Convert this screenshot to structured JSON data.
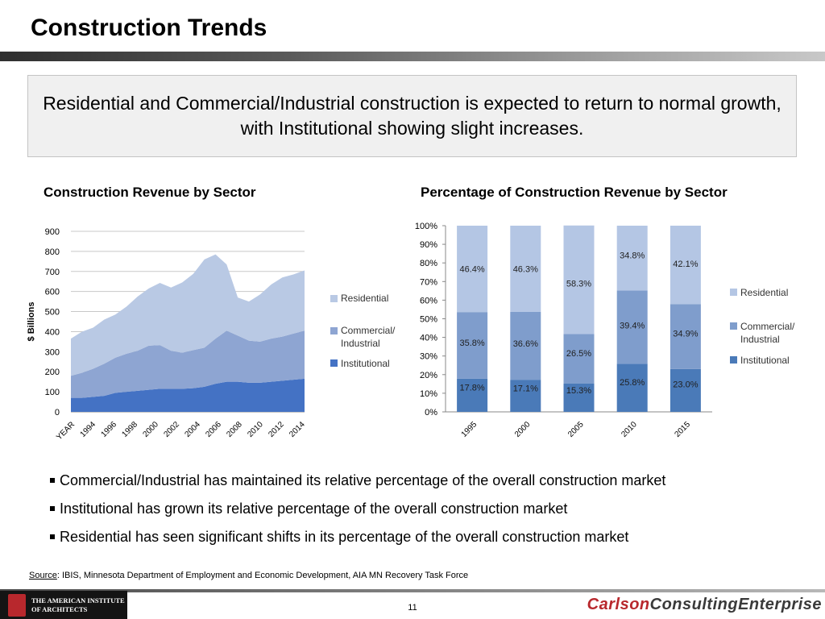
{
  "slide": {
    "title": "Construction Trends",
    "callout": "Residential and Commercial/Industrial construction is expected to return to normal growth, with Institutional showing slight increases."
  },
  "chart_data": [
    {
      "type": "area",
      "title": "Construction Revenue by Sector",
      "ylabel": "$ Billions",
      "xlabel": "",
      "ylim": [
        0,
        900
      ],
      "yticks": [
        "0",
        "100",
        "200",
        "300",
        "400",
        "500",
        "600",
        "700",
        "800",
        "900"
      ],
      "x_tick_labels": [
        "YEAR",
        "1994",
        "1996",
        "1998",
        "2000",
        "2002",
        "2004",
        "2006",
        "2008",
        "2010",
        "2012",
        "2014"
      ],
      "grid": true,
      "legend": "right",
      "stacked": true,
      "years": [
        1993,
        1994,
        1995,
        1996,
        1997,
        1998,
        1999,
        2000,
        2001,
        2002,
        2003,
        2004,
        2005,
        2006,
        2007,
        2008,
        2009,
        2010,
        2011,
        2012,
        2013,
        2014
      ],
      "series": [
        {
          "name": "Institutional",
          "color": "#4472c4",
          "values": [
            70,
            70,
            75,
            80,
            95,
            100,
            105,
            110,
            115,
            115,
            115,
            118,
            125,
            140,
            150,
            150,
            145,
            145,
            150,
            155,
            160,
            165
          ]
        },
        {
          "name": "Commercial/ Industrial",
          "color": "#8ea5d2",
          "values": [
            110,
            125,
            140,
            160,
            175,
            190,
            200,
            220,
            218,
            190,
            180,
            190,
            195,
            225,
            255,
            230,
            210,
            205,
            215,
            220,
            230,
            240
          ]
        },
        {
          "name": "Residential",
          "color": "#b9c9e4",
          "values": [
            185,
            205,
            205,
            220,
            215,
            235,
            270,
            285,
            310,
            315,
            350,
            380,
            440,
            420,
            330,
            190,
            195,
            235,
            270,
            295,
            295,
            300
          ]
        }
      ]
    },
    {
      "type": "bar",
      "title": "Percentage of Construction Revenue by Sector",
      "ylim": [
        0,
        100
      ],
      "yticks": [
        "0%",
        "10%",
        "20%",
        "30%",
        "40%",
        "50%",
        "60%",
        "70%",
        "80%",
        "90%",
        "100%"
      ],
      "categories": [
        "1995",
        "2000",
        "2005",
        "2010",
        "2015"
      ],
      "stacked": true,
      "legend": "right",
      "series": [
        {
          "name": "Institutional",
          "color": "#4a7ab8",
          "values": [
            17.8,
            17.1,
            15.3,
            25.8,
            23.0
          ],
          "labels": [
            "17.8%",
            "17.1%",
            "15.3%",
            "25.8%",
            "23.0%"
          ]
        },
        {
          "name": "Commercial/ Industrial",
          "color": "#7f9dcc",
          "values": [
            35.8,
            36.6,
            26.5,
            39.4,
            34.9
          ],
          "labels": [
            "35.8%",
            "36.6%",
            "26.5%",
            "39.4%",
            "34.9%"
          ]
        },
        {
          "name": "Residential",
          "color": "#b4c6e4",
          "values": [
            46.4,
            46.3,
            58.3,
            34.8,
            42.1
          ],
          "labels": [
            "46.4%",
            "46.3%",
            "58.3%",
            "34.8%",
            "42.1%"
          ]
        }
      ]
    }
  ],
  "legend": {
    "residential": "Residential",
    "commercial_1": "Commercial/",
    "commercial_2": "Industrial",
    "institutional": "Institutional"
  },
  "bullets": [
    "Commercial/Industrial has maintained its relative percentage of the overall construction market",
    "Institutional has grown its relative percentage of the overall construction market",
    "Residential has seen significant shifts in its percentage of the overall construction market"
  ],
  "source": {
    "label": "Source",
    "text": ":  IBIS, Minnesota Department of Employment and Economic Development, AIA MN Recovery Task Force"
  },
  "footer": {
    "aia_line1": "THE AMERICAN INSTITUTE",
    "aia_line2": "OF ARCHITECTS",
    "page_number": "11",
    "brand_part1": "Carlson",
    "brand_part2": "ConsultingEnterprise"
  },
  "colors": {
    "institutional": "#4a7ab8",
    "commercial": "#7f9dcc",
    "residential": "#b4c6e4",
    "brand_red": "#b8282d"
  }
}
